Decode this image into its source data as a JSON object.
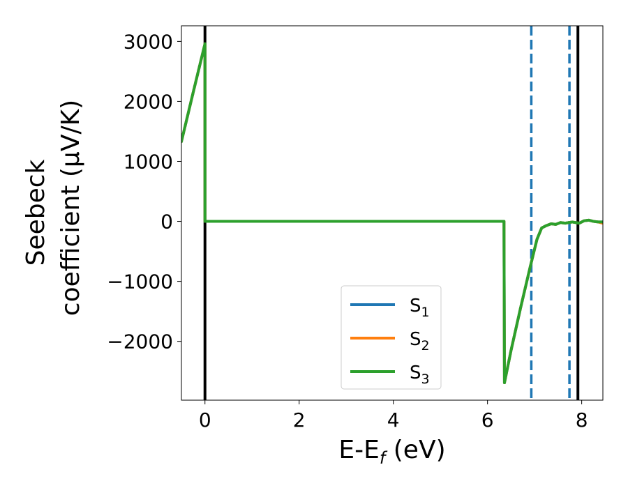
{
  "chart_data": {
    "type": "line",
    "xlabel": "E-E",
    "xlabel_sub": "f",
    "xlabel_unit": " (eV)",
    "ylabel_line1": "Seebeck",
    "ylabel_line2": "coefficient  (μV/K)",
    "xlim": [
      -0.5,
      8.45
    ],
    "ylim": [
      -2980,
      3260
    ],
    "x_ticks": [
      0,
      2,
      4,
      6,
      8
    ],
    "y_ticks": [
      -2000,
      -1000,
      0,
      1000,
      2000,
      3000
    ],
    "x_tick_labels": [
      "0",
      "2",
      "4",
      "6",
      "8"
    ],
    "y_tick_labels": [
      "−2000",
      "−1000",
      "0",
      "1000",
      "2000",
      "3000"
    ],
    "vlines": [
      {
        "x": 0.0,
        "style": "solid",
        "color": "#000000"
      },
      {
        "x": 7.92,
        "style": "solid",
        "color": "#000000"
      },
      {
        "x": 6.93,
        "style": "dashed",
        "color": "#1f77b4"
      },
      {
        "x": 7.74,
        "style": "dashed",
        "color": "#1f77b4"
      }
    ],
    "legend": {
      "location": "lower-center",
      "entries": [
        {
          "label": "S",
          "sub": "1",
          "color": "#1f77b4"
        },
        {
          "label": "S",
          "sub": "2",
          "color": "#ff7f0e"
        },
        {
          "label": "S",
          "sub": "3",
          "color": "#2ca02c"
        }
      ]
    },
    "series": [
      {
        "color": "#1f77b4",
        "x": [
          -0.5,
          -0.25,
          0.0,
          0.0,
          1.0,
          3.0,
          5.0,
          6.0,
          6.35,
          6.36,
          6.5,
          6.7,
          6.9,
          7.05,
          7.15,
          7.25,
          7.35,
          7.45,
          7.55,
          7.65,
          7.8,
          7.95,
          8.05,
          8.15,
          8.25,
          8.35,
          8.45
        ],
        "y": [
          1330,
          2150,
          2960,
          0,
          0,
          0,
          0,
          0,
          0,
          -2690,
          -2150,
          -1450,
          -780,
          -300,
          -110,
          -70,
          -40,
          -50,
          -20,
          -30,
          -10,
          -30,
          10,
          20,
          0,
          -10,
          -10
        ]
      },
      {
        "color": "#ff7f0e",
        "x": [
          -0.5,
          -0.25,
          0.0,
          0.0,
          1.0,
          3.0,
          5.0,
          6.0,
          6.35,
          6.36,
          6.5,
          6.7,
          6.9,
          7.05,
          7.15,
          7.25,
          7.35,
          7.45,
          7.55,
          7.65,
          7.8,
          7.95,
          8.05,
          8.15,
          8.25,
          8.35,
          8.45
        ],
        "y": [
          1330,
          2150,
          2960,
          0,
          0,
          0,
          0,
          0,
          0,
          -2690,
          -2150,
          -1450,
          -780,
          -300,
          -110,
          -70,
          -40,
          -50,
          -20,
          -30,
          -10,
          -30,
          10,
          20,
          0,
          -10,
          -30
        ]
      },
      {
        "color": "#2ca02c",
        "x": [
          -0.5,
          -0.25,
          0.0,
          0.0,
          1.0,
          3.0,
          5.0,
          6.0,
          6.35,
          6.36,
          6.5,
          6.7,
          6.9,
          7.05,
          7.15,
          7.25,
          7.35,
          7.45,
          7.55,
          7.65,
          7.8,
          7.95,
          8.05,
          8.15,
          8.25,
          8.35,
          8.45
        ],
        "y": [
          1330,
          2150,
          2960,
          0,
          0,
          0,
          0,
          0,
          0,
          -2690,
          -2150,
          -1450,
          -780,
          -300,
          -110,
          -70,
          -40,
          -50,
          -20,
          -30,
          -10,
          -30,
          10,
          20,
          0,
          -10,
          -10
        ]
      }
    ]
  }
}
